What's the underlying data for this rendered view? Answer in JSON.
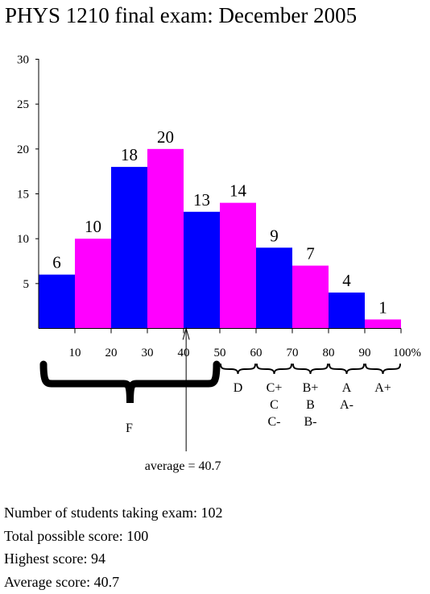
{
  "title": "PHYS 1210 final exam: December 2005",
  "colors": {
    "blue": "#0000ff",
    "magenta": "#ff00ff"
  },
  "chart_data": {
    "type": "bar",
    "title": "PHYS 1210 final exam: December 2005",
    "xlabel": "",
    "ylabel": "",
    "ylim": [
      0,
      30
    ],
    "xlim": [
      0,
      100
    ],
    "yticks": [
      "5",
      "10",
      "15",
      "20",
      "25",
      "30"
    ],
    "xticks": [
      "10",
      "20",
      "30",
      "40",
      "50",
      "60",
      "70",
      "80",
      "90",
      "100%"
    ],
    "grid": false,
    "bins": [
      {
        "from": 0,
        "to": 10,
        "value": 6,
        "color": "blue"
      },
      {
        "from": 10,
        "to": 20,
        "value": 10,
        "color": "magenta"
      },
      {
        "from": 20,
        "to": 30,
        "value": 18,
        "color": "blue"
      },
      {
        "from": 30,
        "to": 40,
        "value": 20,
        "color": "magenta"
      },
      {
        "from": 40,
        "to": 50,
        "value": 13,
        "color": "blue"
      },
      {
        "from": 50,
        "to": 60,
        "value": 14,
        "color": "magenta"
      },
      {
        "from": 60,
        "to": 70,
        "value": 9,
        "color": "blue"
      },
      {
        "from": 70,
        "to": 80,
        "value": 7,
        "color": "magenta"
      },
      {
        "from": 80,
        "to": 90,
        "value": 4,
        "color": "blue"
      },
      {
        "from": 90,
        "to": 100,
        "value": 1,
        "color": "magenta"
      }
    ],
    "grades": [
      {
        "from": 0,
        "to": 50,
        "labels": [
          "F"
        ]
      },
      {
        "from": 50,
        "to": 60,
        "labels": [
          "D"
        ]
      },
      {
        "from": 60,
        "to": 70,
        "labels": [
          "C+",
          "C",
          "C-"
        ]
      },
      {
        "from": 70,
        "to": 80,
        "labels": [
          "B+",
          "B",
          "B-"
        ]
      },
      {
        "from": 80,
        "to": 90,
        "labels": [
          "A",
          "A-"
        ]
      },
      {
        "from": 90,
        "to": 100,
        "labels": [
          "A+"
        ]
      }
    ],
    "average": {
      "value": 40.7,
      "label": "average = 40.7"
    }
  },
  "stats": [
    "Number of students taking exam: 102",
    "Total possible score: 100",
    "Highest score: 94",
    "Average score: 40.7"
  ]
}
